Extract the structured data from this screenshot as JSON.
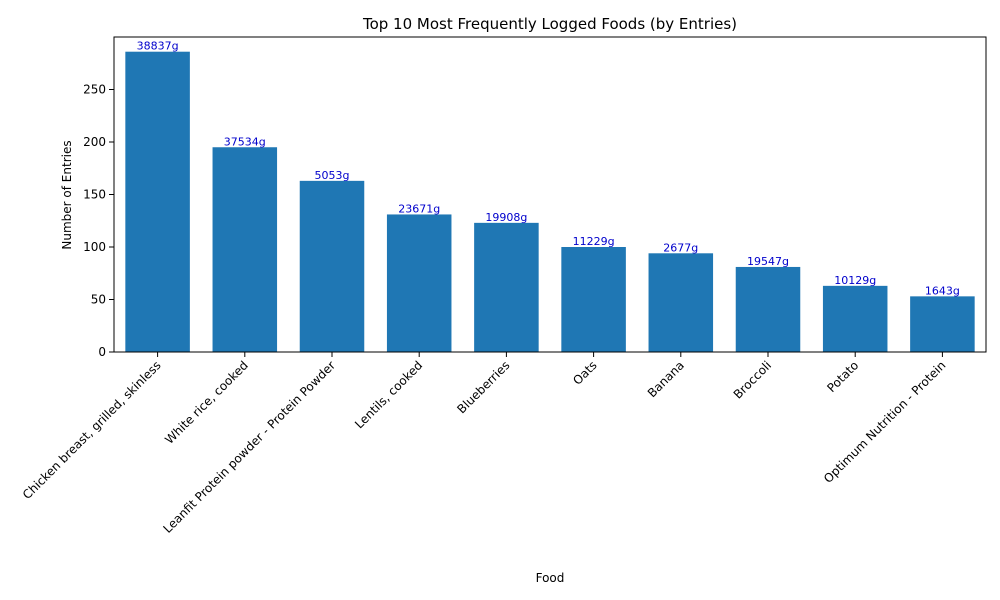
{
  "chart_data": {
    "type": "bar",
    "title": "Top 10 Most Frequently Logged Foods (by Entries)",
    "xlabel": "Food",
    "ylabel": "Number of Entries",
    "ylim": [
      0,
      300
    ],
    "yticks": [
      "0",
      "50",
      "100",
      "150",
      "200",
      "250"
    ],
    "categories": [
      "Chicken breast, grilled, skinless",
      "White rice, cooked",
      "Leanfit Protein powder - Protein Powder",
      "Lentils, cooked",
      "Blueberries",
      "Oats",
      "Banana",
      "Broccoli",
      "Potato",
      "Optimum Nutrition - Protein"
    ],
    "values": [
      286,
      195,
      163,
      131,
      123,
      100,
      94,
      81,
      63,
      53
    ],
    "data_labels": [
      "38837g",
      "37534g",
      "5053g",
      "23671g",
      "19908g",
      "11229g",
      "2677g",
      "19547g",
      "10129g",
      "1643g"
    ],
    "bar_color": "#1f77b4",
    "label_color": "#0000cc",
    "grid": false,
    "legend": "none"
  }
}
